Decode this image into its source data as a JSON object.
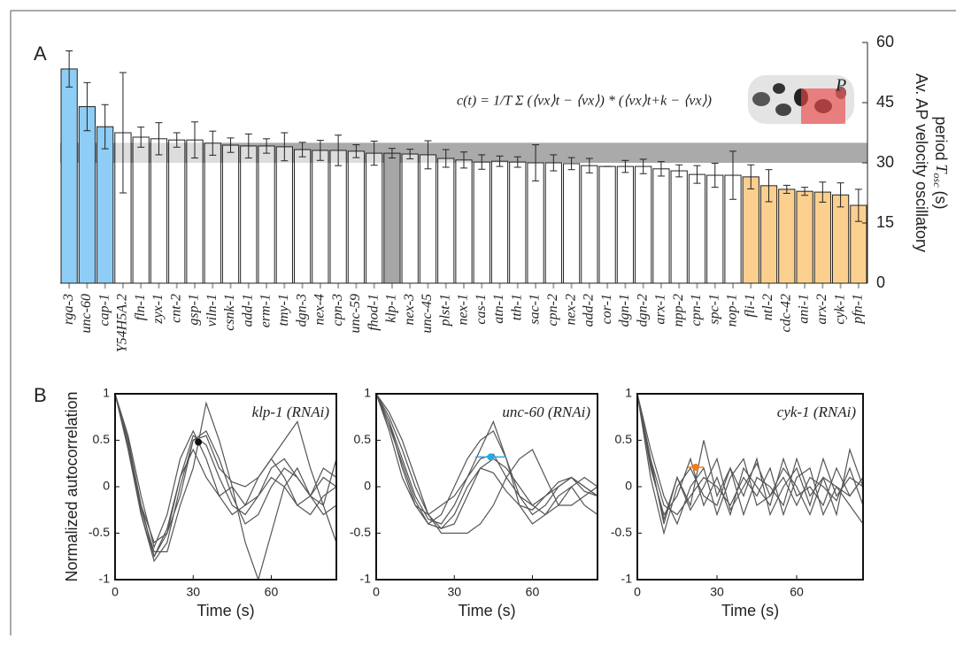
{
  "chart_data": [
    {
      "type": "bar",
      "panel": "A",
      "categories": [
        "rga-3",
        "unc-60",
        "cap-1",
        "Y54H5A.2",
        "fln-1",
        "zyx-1",
        "cnt-2",
        "gsp-1",
        "viln-1",
        "csnk-1",
        "add-1",
        "erm-1",
        "tmy-1",
        "dgn-3",
        "nex-4",
        "cpn-3",
        "unc-59",
        "fhod-1",
        "klp-1",
        "nex-3",
        "unc-45",
        "plst-1",
        "nex-1",
        "cas-1",
        "atn-1",
        "tth-1",
        "sac-1",
        "cpn-2",
        "nex-2",
        "add-2",
        "cor-1",
        "dgn-1",
        "dgn-2",
        "arx-1",
        "npp-2",
        "cpn-1",
        "spc-1",
        "nop-1",
        "fli-1",
        "ntl-2",
        "cdc-42",
        "ani-1",
        "arx-2",
        "cyk-1",
        "pfn-1"
      ],
      "values": [
        53.4,
        44,
        39,
        37.5,
        36.4,
        36,
        35.7,
        35.7,
        34.9,
        34.4,
        34.2,
        34.2,
        34,
        33.3,
        33.1,
        33.1,
        32.9,
        32.4,
        32.4,
        32.2,
        32,
        31.1,
        30.7,
        30.2,
        30.4,
        30.2,
        30,
        30,
        29.8,
        29.3,
        29.1,
        29.1,
        29.1,
        28.5,
        28,
        27.1,
        26.9,
        26.9,
        26.5,
        24.3,
        23.4,
        22.9,
        22.7,
        22,
        19.4
      ],
      "errors": [
        4.5,
        6,
        5.5,
        15,
        2.5,
        4,
        1.8,
        4.5,
        3,
        1.8,
        3,
        1.8,
        3.5,
        1.8,
        2.5,
        3.8,
        1.6,
        3,
        1.2,
        1.2,
        3.5,
        2.2,
        2,
        1.8,
        1.3,
        1.3,
        4.5,
        2,
        1.5,
        1.8,
        0,
        1.5,
        1.8,
        1.8,
        1.5,
        2.2,
        3,
        6,
        3,
        4,
        1,
        1,
        2.5,
        3,
        4
      ],
      "colors": [
        "#8ecdf5",
        "#8ecdf5",
        "#8ecdf5",
        "#ffffff",
        "#ffffff",
        "#ffffff",
        "#ffffff",
        "#ffffff",
        "#ffffff",
        "#ffffff",
        "#ffffff",
        "#ffffff",
        "#ffffff",
        "#ffffff",
        "#ffffff",
        "#ffffff",
        "#ffffff",
        "#ffffff",
        "#a6a6a6",
        "#ffffff",
        "#ffffff",
        "#ffffff",
        "#ffffff",
        "#ffffff",
        "#ffffff",
        "#ffffff",
        "#ffffff",
        "#ffffff",
        "#ffffff",
        "#ffffff",
        "#ffffff",
        "#ffffff",
        "#ffffff",
        "#ffffff",
        "#ffffff",
        "#ffffff",
        "#ffffff",
        "#ffffff",
        "#fbd08f",
        "#fbd08f",
        "#fbd08f",
        "#fbd08f",
        "#fbd08f",
        "#fbd08f",
        "#fbd08f"
      ],
      "band": [
        30,
        35
      ],
      "ylim": [
        0,
        60
      ],
      "yticks": [
        0,
        15,
        30,
        45,
        60
      ],
      "ylabel": [
        "Av. AP velocity oscillatory",
        "period"
      ],
      "ysymbol": "T",
      "ysub": "osc",
      "yunit": "(s)",
      "annotation": "c(t) = 1/T Σ (⟨vx⟩t − ⟨vx⟩) * (⟨vx⟩t+k − ⟨vx⟩)",
      "inset_label": "P"
    },
    {
      "type": "line",
      "panel": "B",
      "title": "klp-1 (RNAi)",
      "title_color": "#222222",
      "ylabel": "Normalized autocorrelation",
      "xlabel": "Time (s)",
      "x": [
        0,
        5,
        10,
        15,
        20,
        25,
        30,
        35,
        40,
        45,
        50,
        55,
        60,
        65,
        70,
        75,
        80,
        85
      ],
      "xlim": [
        0,
        85
      ],
      "xticks": [
        0,
        30,
        60
      ],
      "ylim": [
        -1,
        1
      ],
      "yticks": [
        -1,
        -0.5,
        0,
        0.5,
        1
      ],
      "series": [
        {
          "color": "#555555",
          "values": [
            1,
            0.5,
            -0.2,
            -0.75,
            -0.5,
            0.1,
            0.55,
            0.45,
            0.1,
            -0.2,
            -0.3,
            -0.1,
            0.2,
            0.3,
            0.1,
            -0.1,
            -0.2,
            0.3
          ]
        },
        {
          "color": "#555555",
          "values": [
            1,
            0.45,
            -0.3,
            -0.8,
            -0.6,
            0,
            0.5,
            0.6,
            0.3,
            -0.1,
            -0.4,
            -0.3,
            0,
            0.2,
            0.1,
            -0.1,
            0.1,
            0
          ]
        },
        {
          "color": "#555555",
          "values": [
            1,
            0.55,
            -0.1,
            -0.65,
            -0.3,
            0.3,
            0.6,
            0.3,
            -0.1,
            -0.3,
            -0.2,
            0.1,
            0.3,
            0.1,
            -0.2,
            -0.3,
            -0.1,
            0
          ]
        },
        {
          "color": "#555555",
          "values": [
            1,
            0.5,
            -0.25,
            -0.7,
            -0.7,
            -0.2,
            0.2,
            0.9,
            0.5,
            0,
            -0.2,
            -0.1,
            0.1,
            0,
            -0.2,
            -0.1,
            0.2,
            0.1
          ]
        },
        {
          "color": "#555555",
          "values": [
            1,
            0.4,
            -0.3,
            -0.75,
            -0.45,
            0.1,
            0.4,
            0.1,
            -0.1,
            0,
            -0.6,
            -1,
            -0.5,
            0,
            0.2,
            -0.1,
            -0.3,
            -0.2
          ]
        },
        {
          "color": "#555555",
          "values": [
            1,
            0.5,
            -0.2,
            -0.6,
            -0.5,
            -0.1,
            0.5,
            0.55,
            0.2,
            0.05,
            0,
            0.1,
            0.3,
            0.5,
            0.7,
            0.2,
            -0.2,
            -0.6
          ]
        }
      ],
      "point": {
        "x": 32,
        "y": 0.48,
        "color": "#111111"
      }
    },
    {
      "type": "line",
      "title": "unc-60 (RNAi)",
      "title_color": "#2aa7e0",
      "xlabel": "Time (s)",
      "x": [
        0,
        5,
        10,
        15,
        20,
        25,
        30,
        35,
        40,
        45,
        50,
        55,
        60,
        65,
        70,
        75,
        80,
        85
      ],
      "xlim": [
        0,
        85
      ],
      "xticks": [
        0,
        30,
        60
      ],
      "ylim": [
        -1,
        1
      ],
      "yticks": [
        -1,
        -0.5,
        0,
        0.5,
        1
      ],
      "series": [
        {
          "color": "#555555",
          "values": [
            1,
            0.7,
            0.3,
            -0.1,
            -0.35,
            -0.4,
            -0.2,
            0.1,
            0.3,
            0.35,
            0.1,
            -0.1,
            -0.2,
            -0.1,
            0,
            0.1,
            0,
            -0.1
          ]
        },
        {
          "color": "#555555",
          "values": [
            1,
            0.75,
            0.4,
            0,
            -0.3,
            -0.45,
            -0.4,
            -0.1,
            0.2,
            0.3,
            0.2,
            0,
            -0.2,
            -0.3,
            -0.2,
            0,
            0.1,
            0
          ]
        },
        {
          "color": "#555555",
          "values": [
            1,
            0.8,
            0.5,
            0.1,
            -0.3,
            -0.5,
            -0.5,
            -0.5,
            -0.4,
            -0.2,
            0.1,
            0.3,
            0.4,
            0.1,
            -0.2,
            -0.2,
            -0.1,
            0
          ]
        },
        {
          "color": "#555555",
          "values": [
            1,
            0.6,
            0.1,
            -0.2,
            -0.4,
            -0.3,
            0,
            0.3,
            0.5,
            0.6,
            0.3,
            -0.1,
            -0.3,
            -0.2,
            0,
            0.1,
            0,
            -0.1
          ]
        },
        {
          "color": "#555555",
          "values": [
            1,
            0.7,
            0.2,
            -0.2,
            -0.3,
            -0.2,
            -0.1,
            0.1,
            0.4,
            0.7,
            0.3,
            -0.2,
            -0.4,
            -0.3,
            -0.1,
            0,
            -0.2,
            -0.3
          ]
        },
        {
          "color": "#555555",
          "values": [
            1,
            0.65,
            0.25,
            -0.15,
            -0.4,
            -0.45,
            -0.3,
            0,
            0.2,
            0.15,
            -0.05,
            -0.2,
            -0.25,
            -0.1,
            0.05,
            0.1,
            -0.05,
            -0.1
          ]
        }
      ],
      "point": {
        "x": 44,
        "y": 0.32,
        "xerr": 6,
        "color": "#2aa7e0"
      }
    },
    {
      "type": "line",
      "title": "cyk-1 (RNAi)",
      "title_color": "#f07d1a",
      "xlabel": "Time (s)",
      "x": [
        0,
        5,
        10,
        15,
        20,
        25,
        30,
        35,
        40,
        45,
        50,
        55,
        60,
        65,
        70,
        75,
        80,
        85
      ],
      "xlim": [
        0,
        85
      ],
      "xticks": [
        0,
        30,
        60
      ],
      "ylim": [
        -1,
        1
      ],
      "yticks": [
        -1,
        -0.5,
        0,
        0.5,
        1
      ],
      "series": [
        {
          "color": "#555555",
          "values": [
            1,
            0.3,
            -0.4,
            0.1,
            -0.2,
            0.5,
            -0.1,
            0.2,
            -0.3,
            0.1,
            0,
            -0.2,
            0.3,
            -0.1,
            0.1,
            -0.3,
            0.4,
            0
          ]
        },
        {
          "color": "#555555",
          "values": [
            1,
            0.2,
            -0.3,
            -0.1,
            0.3,
            -0.2,
            0.1,
            -0.3,
            0.2,
            0,
            -0.2,
            0.3,
            -0.1,
            0,
            -0.2,
            0.2,
            -0.1,
            0.1
          ]
        },
        {
          "color": "#555555",
          "values": [
            1,
            0.4,
            -0.1,
            -0.4,
            0,
            0.2,
            -0.3,
            0.1,
            0.3,
            -0.2,
            -0.1,
            0.2,
            0,
            -0.3,
            0.1,
            0,
            -0.2,
            -0.4
          ]
        },
        {
          "color": "#555555",
          "values": [
            1,
            0.1,
            -0.5,
            0,
            0.2,
            -0.1,
            -0.2,
            0.2,
            -0.1,
            0.3,
            -0.3,
            0,
            0.2,
            -0.2,
            0.3,
            -0.1,
            0.1,
            0
          ]
        },
        {
          "color": "#555555",
          "values": [
            1,
            0.3,
            -0.2,
            -0.3,
            -0.1,
            0.1,
            0,
            -0.2,
            0.1,
            -0.1,
            0.2,
            -0.3,
            0.1,
            0.2,
            -0.3,
            0,
            -0.1,
            0.1
          ]
        },
        {
          "color": "#555555",
          "values": [
            1,
            0.25,
            -0.35,
            0.1,
            -0.25,
            0,
            0.3,
            -0.25,
            0,
            0.25,
            -0.1,
            0.1,
            -0.2,
            0.1,
            0,
            -0.15,
            0.2,
            -0.2
          ]
        }
      ],
      "point": {
        "x": 22,
        "y": 0.21,
        "xerr": 3,
        "color": "#f07d1a"
      }
    }
  ]
}
